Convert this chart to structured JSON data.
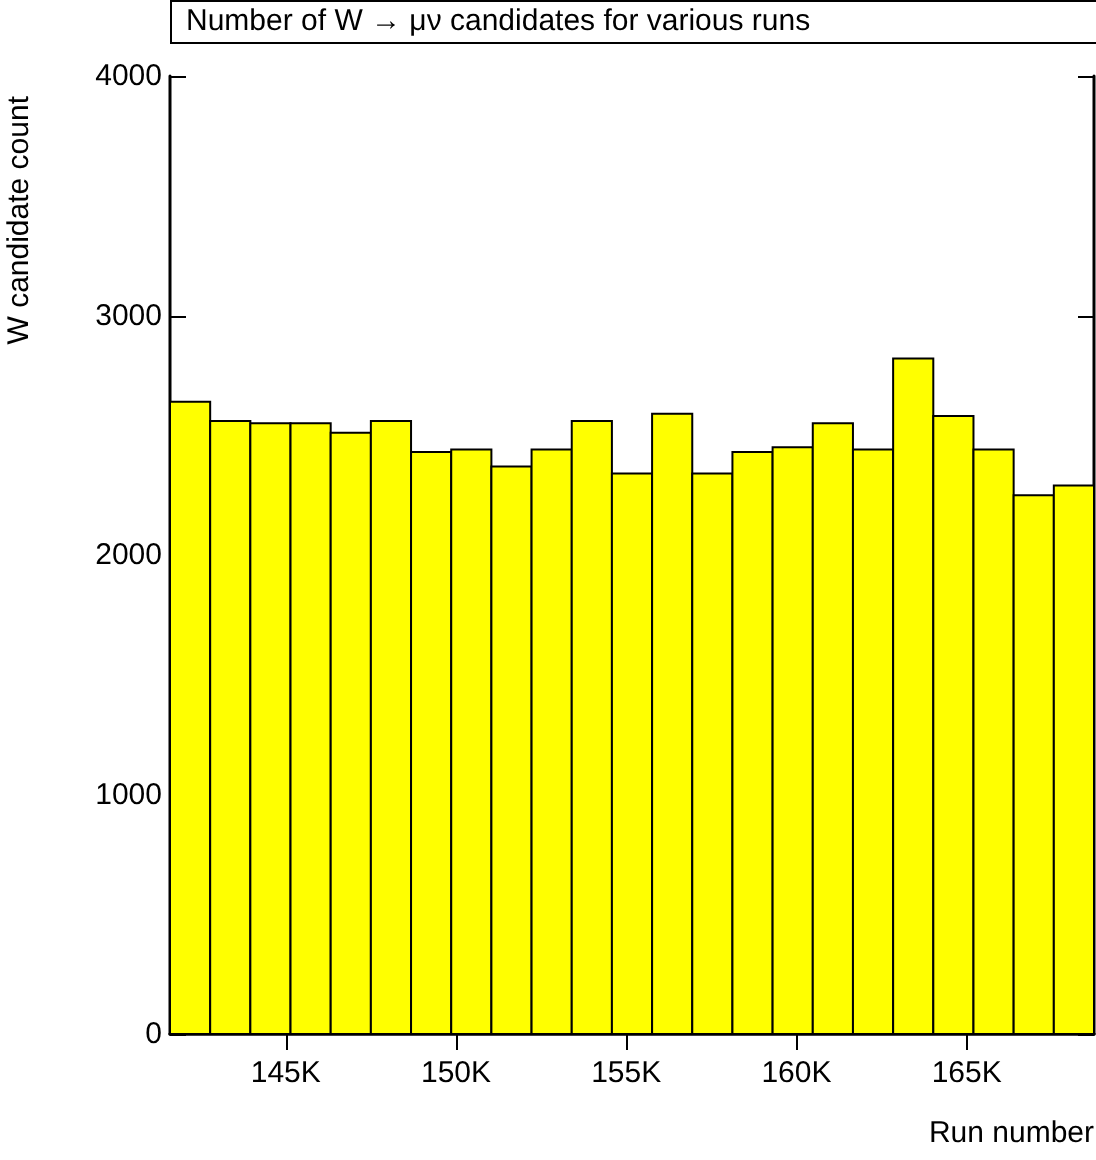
{
  "chart_data": {
    "type": "histogram",
    "title": "Number of W → μν candidates for various runs",
    "xlabel": "Run number",
    "ylabel": "W candidate count",
    "color": "#ffff00",
    "bins": [
      141.6,
      142.78,
      143.96,
      145.14,
      146.32,
      147.5,
      148.68,
      149.86,
      151.04,
      152.22,
      153.4,
      154.58,
      155.76,
      156.94,
      158.12,
      159.3,
      160.48,
      161.66,
      162.84,
      164.02,
      165.2,
      166.38,
      167.56,
      168.74
    ],
    "values": [
      2640,
      2560,
      2550,
      2550,
      2510,
      2560,
      2430,
      2440,
      2370,
      2440,
      2560,
      2340,
      2590,
      2340,
      2430,
      2450,
      2550,
      2440,
      2820,
      2580,
      2440,
      2250,
      2290
    ],
    "xlim": [
      141.6,
      168.74
    ],
    "xticks": [
      {
        "value": 145,
        "label": "145K"
      },
      {
        "value": 150,
        "label": "150K"
      },
      {
        "value": 155,
        "label": "155K"
      },
      {
        "value": 160,
        "label": "160K"
      },
      {
        "value": 165,
        "label": "165K"
      }
    ],
    "ylim": [
      0,
      4000
    ],
    "yticks": [
      0,
      1000,
      2000,
      3000,
      4000
    ],
    "grid": false
  }
}
